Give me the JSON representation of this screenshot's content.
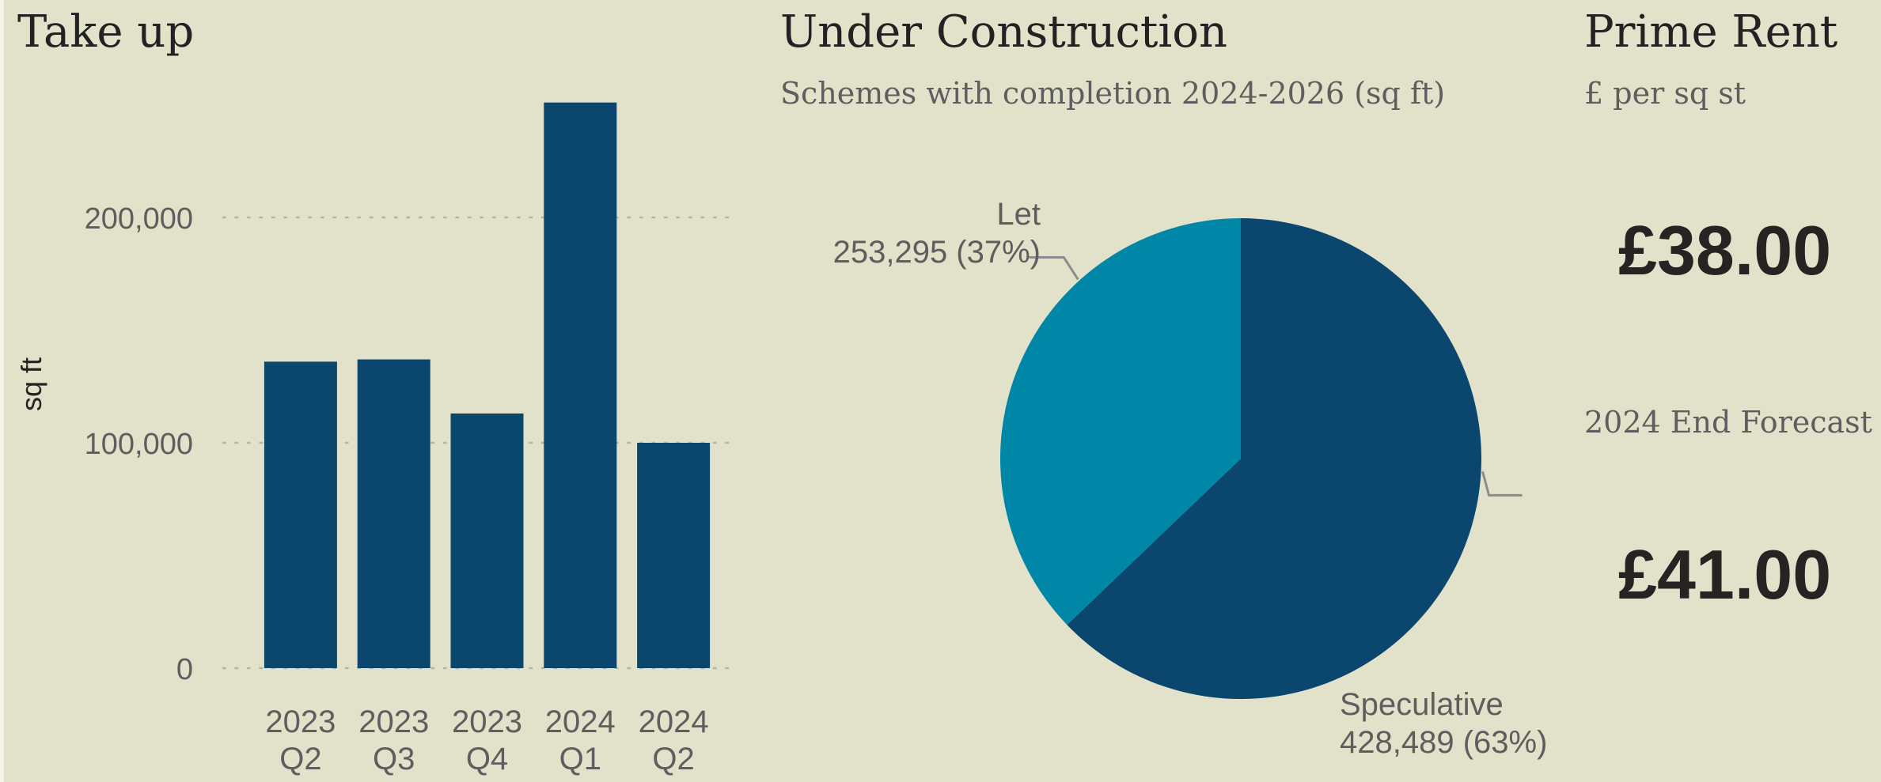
{
  "colors": {
    "background": "#e2e1c9",
    "bar": "#0b466e",
    "pie_speculative": "#0b466e",
    "pie_let": "#0086a6",
    "axis_text": "#5e5e5e",
    "title_text": "#222222"
  },
  "take_up": {
    "title": "Take up",
    "chart_data": {
      "type": "bar",
      "categories": [
        [
          "2023",
          "Q2"
        ],
        [
          "2023",
          "Q3"
        ],
        [
          "2023",
          "Q4"
        ],
        [
          "2024",
          "Q1"
        ],
        [
          "2024",
          "Q2"
        ]
      ],
      "values": [
        136000,
        137000,
        113000,
        251000,
        100000
      ],
      "ylabel": "sq ft",
      "ylim": [
        0,
        250000
      ],
      "yticks": [
        0,
        100000,
        200000
      ],
      "ytick_labels": [
        "0",
        "100,000",
        "200,000"
      ],
      "grid": true
    }
  },
  "under_construction": {
    "title": "Under Construction",
    "subtitle": "Schemes with completion 2024-2026 (sq ft)",
    "chart_data": {
      "type": "pie",
      "slices": [
        {
          "label": "Speculative",
          "value": 428489,
          "percent": 63,
          "value_label": "428,489 (63%)"
        },
        {
          "label": "Let",
          "value": 253295,
          "percent": 37,
          "value_label": "253,295 (37%)"
        }
      ]
    }
  },
  "prime_rent": {
    "title": "Prime Rent",
    "subtitle": "£ per sq st",
    "current_value": "£38.00",
    "forecast_label": "2024 End Forecast",
    "forecast_value": "£41.00"
  }
}
